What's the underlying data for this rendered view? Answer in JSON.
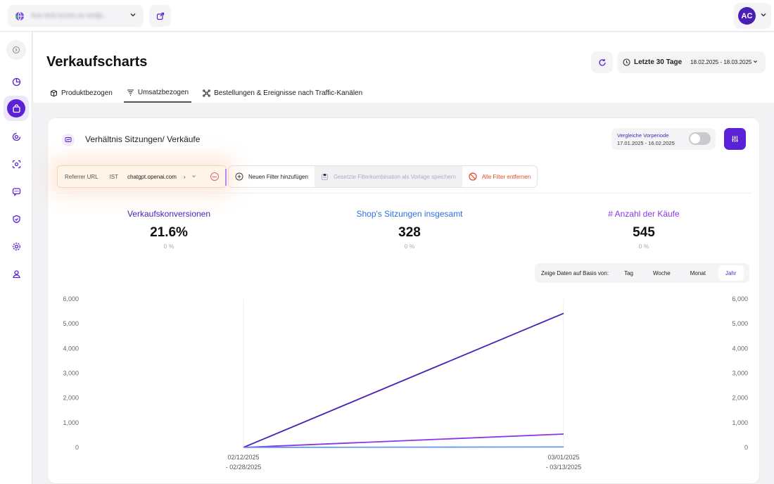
{
  "topbar": {
    "store_name": "live-test-ecom.xx-endp...",
    "icons": [
      "globe-icon",
      "chevron-down-icon",
      "external-link-icon"
    ],
    "user_initials": "AC"
  },
  "sidebar": {
    "icons": [
      "collapse-icon",
      "pie-chart-icon",
      "shopping-bag-icon",
      "target-icon",
      "scan-face-icon",
      "chat-icon",
      "shield-icon",
      "settings-icon",
      "user-group-icon"
    ],
    "active": "shopping-bag-icon"
  },
  "header": {
    "title": "Verkaufscharts",
    "date_label": "Letzte 30 Tage",
    "date_range": "18.02.2025 - 18.03.2025"
  },
  "tabs": [
    {
      "label": "Produktbezogen",
      "icon": "box-icon",
      "active": false
    },
    {
      "label": "Umsatzbezogen",
      "icon": "funnel-icon",
      "active": true
    },
    {
      "label": "Bestellungen & Ereignisse nach Traffic-Kanälen",
      "icon": "network-icon",
      "active": false
    }
  ],
  "card": {
    "title": "Verhältnis Sitzungen/ Verkäufe",
    "compare": {
      "label": "Vergleiche Vorperiode",
      "range": "17.01.2025 - 16.02.2025",
      "enabled": false
    }
  },
  "filters": {
    "chip": {
      "field": "Referrer URL",
      "operator": "IST",
      "value": "chatgpt.openai.com",
      "more": "›"
    },
    "add_label": "Neuen Filter hinzufügen",
    "save_label": "Gesetzte Filterkombination als Vorlage speichern",
    "clear_label": "Alle Filter entfernen"
  },
  "kpis": [
    {
      "name": "Verkaufskonversionen",
      "value": "21.6%",
      "delta": "0 %",
      "color": "#4a1fb8"
    },
    {
      "name": "Shop's Sitzungen insgesamt",
      "value": "328",
      "delta": "0 %",
      "color": "#2f6fe0"
    },
    {
      "name": "# Anzahl der Käufe",
      "value": "545",
      "delta": "0 %",
      "color": "#8a35e8"
    }
  ],
  "period": {
    "label": "Zeige Daten auf Basis von:",
    "options": [
      "Tag",
      "Woche",
      "Monat",
      "Jahr"
    ],
    "active": "Jahr"
  },
  "chart_data": {
    "type": "line",
    "x": [
      "02/12/2025 - 02/28/2025",
      "03/01/2025 - 03/13/2025"
    ],
    "y_ticks_left": [
      "0",
      "1,000",
      "2,000",
      "3,000",
      "4,000",
      "5,000",
      "6,000"
    ],
    "y_ticks_right": [
      "0",
      "1,000",
      "2,000",
      "3,000",
      "4,000",
      "5,000",
      "6,000"
    ],
    "ylim": [
      0,
      6000
    ],
    "grid": false,
    "series": [
      {
        "values": [
          0,
          5420
        ],
        "color": "#4a1fb8"
      },
      {
        "values": [
          0,
          540
        ],
        "color": "#8a35e8"
      },
      {
        "values": [
          0,
          20
        ],
        "color": "#6a9af0"
      }
    ]
  }
}
